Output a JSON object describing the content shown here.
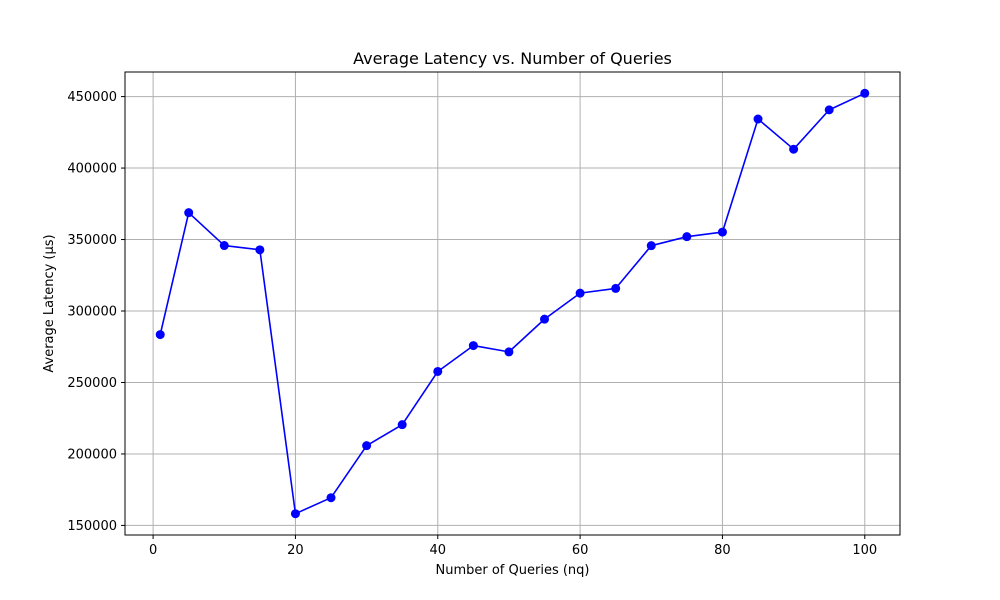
{
  "chart_data": {
    "type": "line",
    "title": "Average Latency vs. Number of Queries",
    "xlabel": "Number of Queries (nq)",
    "ylabel": "Average Latency (µs)",
    "xlim": [
      -3.95,
      104.95
    ],
    "ylim": [
      143300,
      467200
    ],
    "xticks": [
      0,
      20,
      40,
      60,
      80,
      100
    ],
    "yticks": [
      150000,
      200000,
      250000,
      300000,
      350000,
      400000,
      450000
    ],
    "grid": true,
    "line_color": "#0000ff",
    "marker": "circle",
    "series": [
      {
        "x": [
          1,
          5,
          10,
          15,
          20,
          25,
          30,
          35,
          40,
          45,
          50,
          55,
          60,
          65,
          70,
          75,
          80,
          85,
          90,
          95,
          100
        ],
        "values": [
          283500,
          368800,
          345800,
          342800,
          158200,
          169400,
          205800,
          220500,
          257700,
          275800,
          271400,
          294300,
          312500,
          315800,
          345700,
          352000,
          355200,
          434300,
          413200,
          440700,
          452300
        ]
      }
    ]
  }
}
